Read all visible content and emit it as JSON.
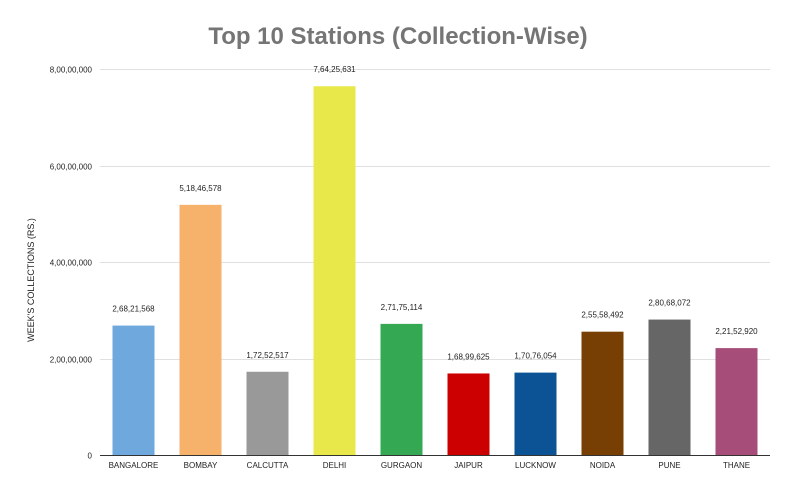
{
  "chart_data": {
    "type": "bar",
    "title": "Top 10 Stations (Collection-Wise)",
    "xlabel": "",
    "ylabel": "WEEK'S COLLECTIONS (RS.)",
    "ylim": [
      0,
      80000000
    ],
    "yticks": [
      {
        "value": 0,
        "label": "0"
      },
      {
        "value": 20000000,
        "label": "2,00,00,000"
      },
      {
        "value": 40000000,
        "label": "4,00,00,000"
      },
      {
        "value": 60000000,
        "label": "6,00,00,000"
      },
      {
        "value": 80000000,
        "label": "8,00,00,000"
      }
    ],
    "grid": true,
    "legend": "none",
    "categories": [
      "BANGALORE",
      "BOMBAY",
      "CALCUTTA",
      "DELHI",
      "GURGAON",
      "JAIPUR",
      "LUCKNOW",
      "NOIDA",
      "PUNE",
      "THANE"
    ],
    "values": [
      26821568,
      51846578,
      17252517,
      76425631,
      27175114,
      16899625,
      17076054,
      25558492,
      28068072,
      22152920
    ],
    "data_labels": [
      "2,68,21,568",
      "5,18,46,578",
      "1,72,52,517",
      "7,64,25,631",
      "2,71,75,114",
      "1,68,99,625",
      "1,70,76,054",
      "2,55,58,492",
      "2,80,68,072",
      "2,21,52,920"
    ],
    "colors": [
      "#6fa8dc",
      "#f6b26b",
      "#999999",
      "#e8e84a",
      "#34a853",
      "#cc0000",
      "#0b5394",
      "#783f04",
      "#666666",
      "#a64d79"
    ]
  }
}
